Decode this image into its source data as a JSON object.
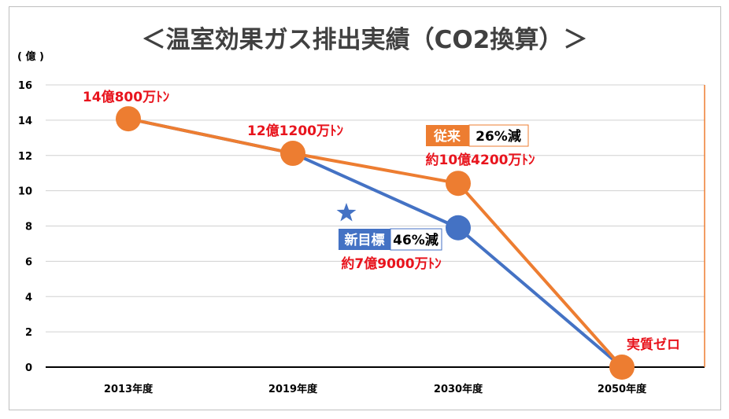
{
  "chart_data": {
    "type": "line",
    "title": "＜温室効果ガス排出実績（CO2換算）＞",
    "y_unit": "( 億 )",
    "categories": [
      "2013年度",
      "2019年度",
      "2030年度",
      "2050年度"
    ],
    "ylim": [
      0,
      16
    ],
    "yticks": [
      0,
      2,
      4,
      6,
      8,
      10,
      12,
      14,
      16
    ],
    "grid": true,
    "series": [
      {
        "key": "new_target",
        "color": "#4472c4",
        "values": [
          14.08,
          12.12,
          7.9,
          0
        ]
      },
      {
        "key": "conventional",
        "color": "#ed7d31",
        "values": [
          14.08,
          12.12,
          10.42,
          0
        ]
      }
    ],
    "annotations": {
      "y2013": "14億800万ﾄﾝ",
      "y2019": "12億1200万ﾄﾝ",
      "conventional_label": "従来",
      "conventional_pct": "26%減",
      "conventional_value": "約10億4200万ﾄﾝ",
      "new_label": "新目標",
      "new_pct": "46%減",
      "new_value": "約7億9000万ﾄﾝ",
      "zero_label": "実質ゼロ"
    },
    "colors": {
      "blue": "#4472c4",
      "orange": "#ed7d31",
      "annotation_red": "#e8141d",
      "grid": "#d0d0d0"
    }
  }
}
